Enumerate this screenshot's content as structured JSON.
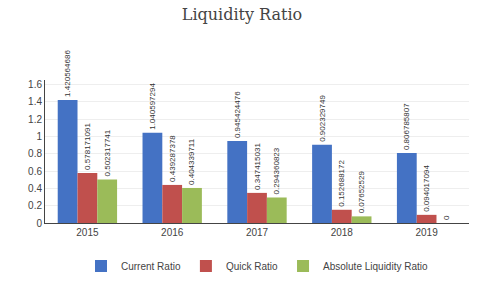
{
  "chart_data": {
    "type": "bar",
    "title": "Liquidity Ratio",
    "categories": [
      "2015",
      "2016",
      "2017",
      "2018",
      "2019"
    ],
    "series": [
      {
        "name": "Current Ratio",
        "color": "#4472c4",
        "values": [
          1.420564686,
          1.040597294,
          0.945424476,
          0.902329749,
          0.806785807
        ]
      },
      {
        "name": "Quick Ratio",
        "color": "#c0504d",
        "values": [
          0.578171091,
          0.439287378,
          0.347415031,
          0.152688172,
          0.094017094
        ]
      },
      {
        "name": "Absolute Liquidity Ratio",
        "color": "#9bbb59",
        "values": [
          0.502317741,
          0.404339711,
          0.294360823,
          0.07652529,
          0
        ]
      }
    ],
    "ylim": [
      0,
      1.65
    ],
    "yticks": [
      0,
      0.2,
      0.4,
      0.6,
      0.8,
      1.0,
      1.2,
      1.4,
      1.6
    ],
    "grid": true,
    "legend": "bottom",
    "data_labels": true
  }
}
